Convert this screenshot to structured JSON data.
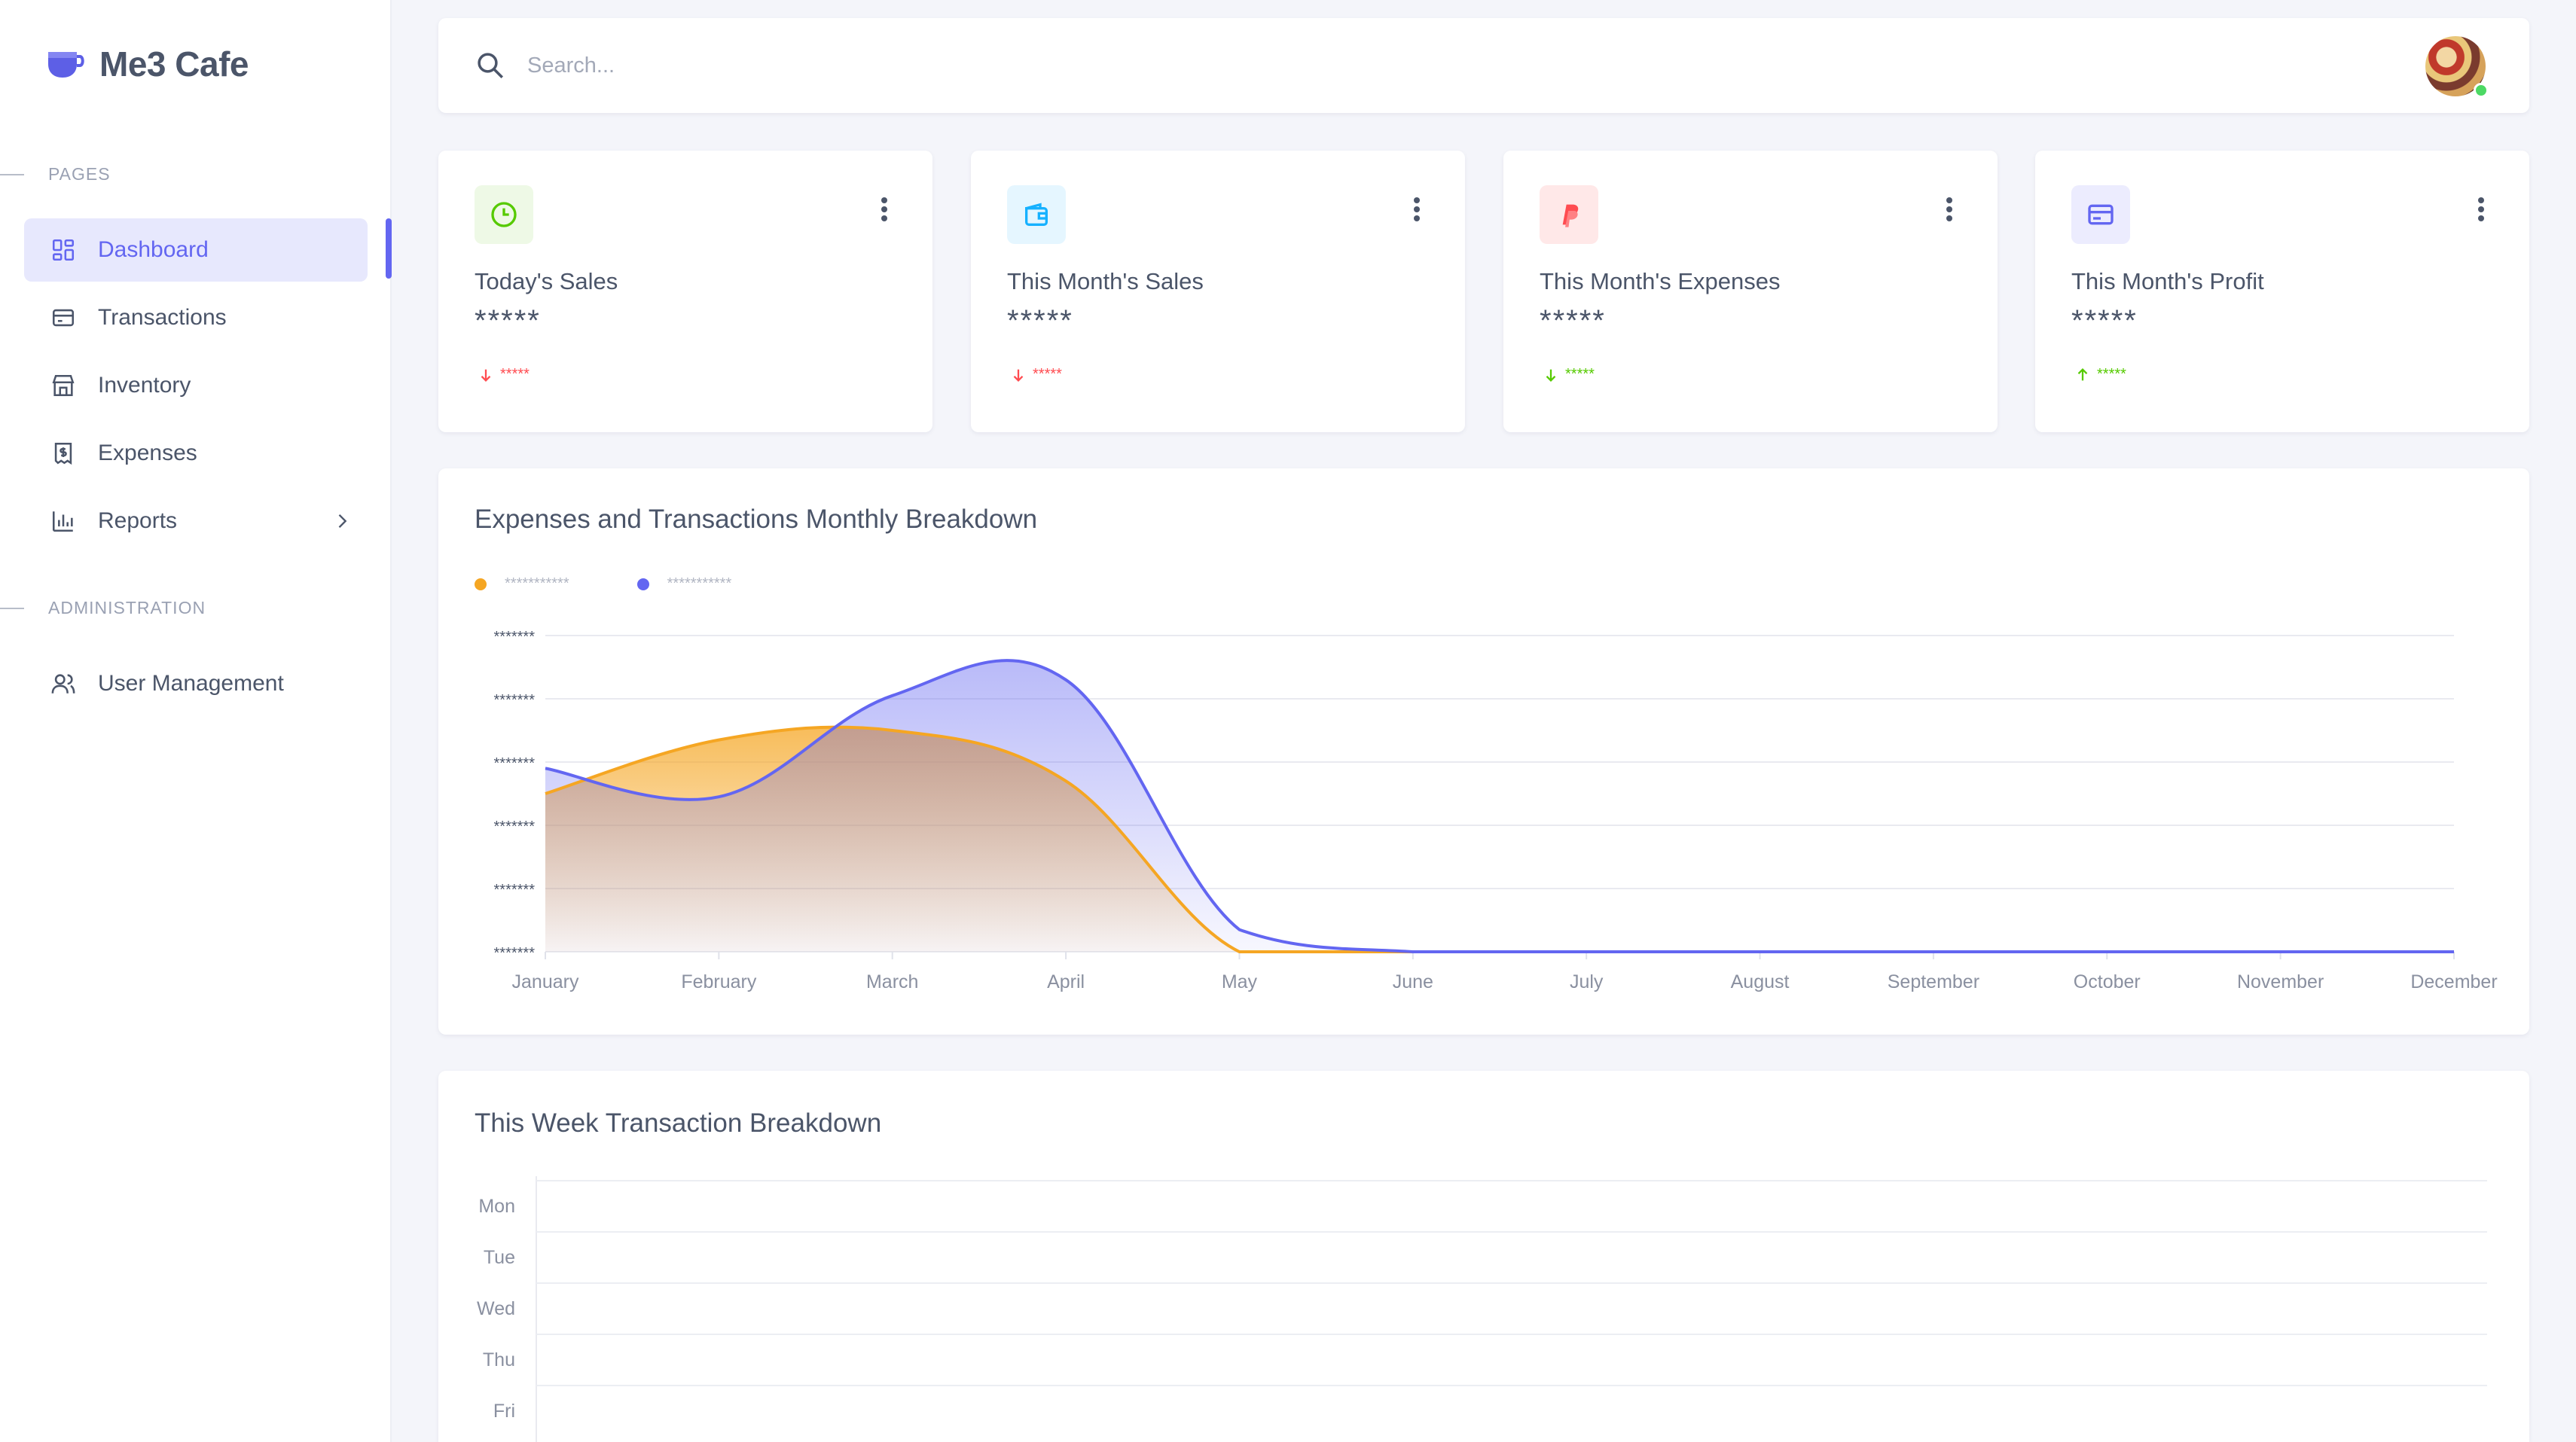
{
  "brand": {
    "name": "Me3 Cafe",
    "icon": "coffee-cup-icon"
  },
  "sidebar": {
    "sections": [
      {
        "label": "PAGES"
      },
      {
        "label": "ADMINISTRATION"
      }
    ],
    "items": [
      {
        "label": "Dashboard",
        "icon": "dashboard-grid-icon",
        "active": true
      },
      {
        "label": "Transactions",
        "icon": "credit-card-icon"
      },
      {
        "label": "Inventory",
        "icon": "store-icon"
      },
      {
        "label": "Expenses",
        "icon": "receipt-dollar-icon"
      },
      {
        "label": "Reports",
        "icon": "bar-chart-icon",
        "has_children": true
      },
      {
        "label": "User Management",
        "icon": "users-icon"
      }
    ]
  },
  "header": {
    "search_placeholder": "Search...",
    "avatar_online": true
  },
  "cards": [
    {
      "title": "Today's Sales",
      "value": "*****",
      "trend": "*****",
      "direction": "down",
      "icon": "pie-chart-icon",
      "accent": "#56ca00",
      "bg": "#eef9e6",
      "trend_color": "#ff4c51"
    },
    {
      "title": "This Month's Sales",
      "value": "*****",
      "trend": "*****",
      "direction": "down",
      "icon": "wallet-icon",
      "accent": "#16b1ff",
      "bg": "#e5f6ff",
      "trend_color": "#ff4c51"
    },
    {
      "title": "This Month's Expenses",
      "value": "*****",
      "trend": "*****",
      "direction": "down",
      "icon": "paypal-icon",
      "accent": "#ff4c51",
      "bg": "#ffe8e8",
      "trend_color": "#56ca00"
    },
    {
      "title": "This Month's Profit",
      "value": "*****",
      "trend": "*****",
      "direction": "up",
      "icon": "credit-card-icon",
      "accent": "#6366f1",
      "bg": "#ececfe",
      "trend_color": "#56ca00"
    }
  ],
  "monthly_chart": {
    "title": "Expenses and Transactions Monthly Breakdown",
    "legend": [
      "***********",
      "***********"
    ],
    "y_ticks": [
      "*******",
      "*******",
      "*******",
      "*******",
      "*******",
      "*******"
    ]
  },
  "weekly_chart": {
    "title": "This Week Transaction Breakdown",
    "days": [
      "Mon",
      "Tue",
      "Wed",
      "Thu",
      "Fri"
    ]
  },
  "chart_data": [
    {
      "type": "area",
      "title": "Expenses and Transactions Monthly Breakdown",
      "categories": [
        "January",
        "February",
        "March",
        "April",
        "May",
        "June",
        "July",
        "August",
        "September",
        "October",
        "November",
        "December"
      ],
      "ylim": [
        0,
        5
      ],
      "grid": true,
      "legend_placement": "top-left",
      "series": [
        {
          "color": "#f5a623",
          "values": [
            2.5,
            3.35,
            3.5,
            2.7,
            0,
            0,
            0,
            0,
            0,
            0,
            0,
            0
          ]
        },
        {
          "color": "#6366f1",
          "values": [
            2.9,
            2.45,
            4.05,
            4.3,
            0.35,
            0,
            0,
            0,
            0,
            0,
            0,
            0
          ]
        }
      ]
    },
    {
      "type": "bar",
      "title": "This Week Transaction Breakdown",
      "categories": [
        "Mon",
        "Tue",
        "Wed",
        "Thu",
        "Fri"
      ],
      "values": [
        0,
        0,
        0,
        0,
        0
      ],
      "grid": true
    }
  ]
}
